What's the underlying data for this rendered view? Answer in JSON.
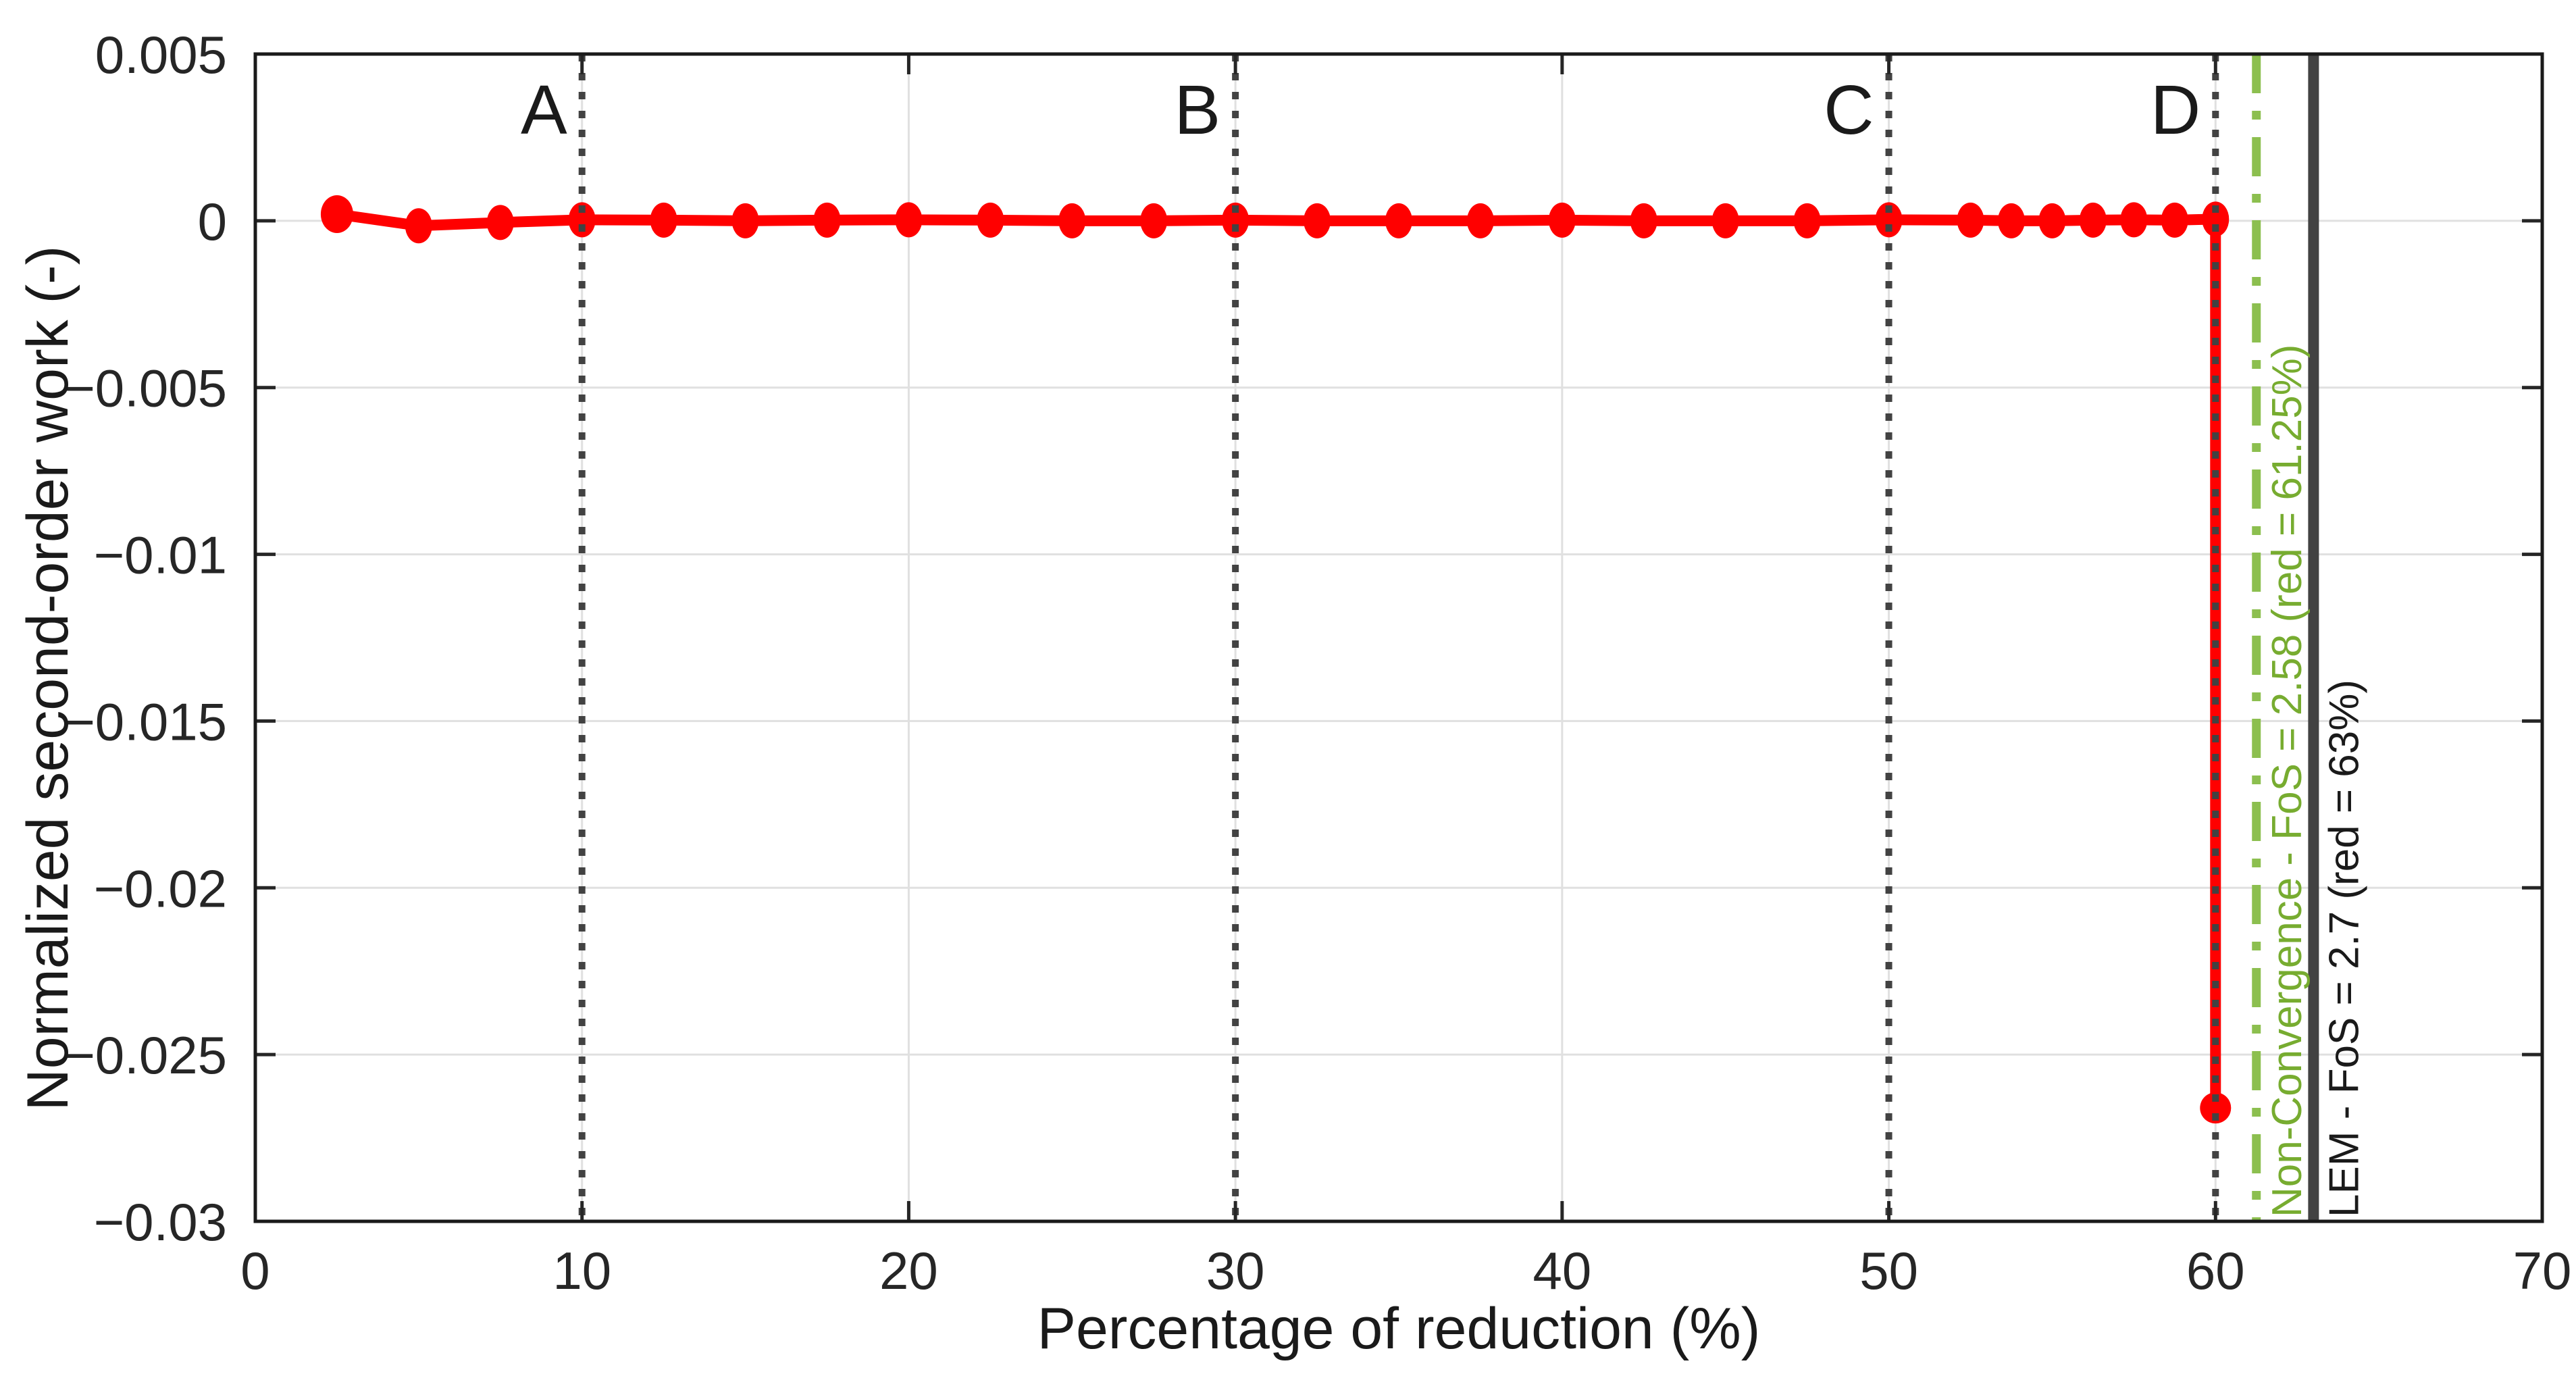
{
  "figure": {
    "background": "#ffffff",
    "axis_box_color": "#1a1a1a",
    "grid_color": "#e0e0e0",
    "tick_color": "#262626",
    "tick_label_color": "#262626",
    "axis_title_color": "#1a1a1a",
    "series_color": "#ff0000",
    "marker_letter_color": "#1a1a1a"
  },
  "chart_data": {
    "type": "line",
    "title": "",
    "xlabel": "Percentage of reduction (%)",
    "ylabel": "Normalized second-order work (-)",
    "xlim": [
      0,
      70
    ],
    "ylim": [
      -0.03,
      0.005
    ],
    "grid": true,
    "legend_position": "none",
    "xticks": {
      "values": [
        0,
        10,
        20,
        30,
        40,
        50,
        60,
        70
      ],
      "labels": [
        "0",
        "10",
        "20",
        "30",
        "40",
        "50",
        "60",
        "70"
      ]
    },
    "yticks": {
      "values": [
        0.005,
        0,
        -0.005,
        -0.01,
        -0.015,
        -0.02,
        -0.025,
        -0.03
      ],
      "labels": [
        "0.005",
        "0",
        "−0.005",
        "−0.01",
        "−0.015",
        "−0.02",
        "−0.025",
        "−0.03"
      ]
    },
    "series": [
      {
        "name": "normalized second-order work",
        "color": "#ff0000",
        "marker": "circle",
        "line_style": "solid",
        "x": [
          2.5,
          5,
          7.5,
          10,
          12.5,
          15,
          17.5,
          20,
          22.5,
          25,
          27.5,
          30,
          32.5,
          35,
          37.5,
          40,
          42.5,
          45,
          47.5,
          50,
          52.5,
          53.75,
          55,
          56.25,
          57.5,
          58.75,
          60,
          60
        ],
        "y": [
          0.0002,
          -0.00015,
          -5e-05,
          3e-05,
          2e-05,
          0,
          2e-05,
          3e-05,
          2e-05,
          0,
          0,
          2e-05,
          0,
          0,
          0,
          2e-05,
          0,
          0,
          0,
          3e-05,
          2e-05,
          0,
          0,
          2e-05,
          3e-05,
          2e-05,
          5e-05,
          -0.0266
        ]
      }
    ],
    "vlines": [
      {
        "x": 10,
        "label": "A",
        "style": "dotted",
        "color": "#424242",
        "label_orientation": "horizontal",
        "label_color": "#1a1a1a"
      },
      {
        "x": 30,
        "label": "B",
        "style": "dotted",
        "color": "#424242",
        "label_orientation": "horizontal",
        "label_color": "#1a1a1a"
      },
      {
        "x": 50,
        "label": "C",
        "style": "dotted",
        "color": "#424242",
        "label_orientation": "horizontal",
        "label_color": "#1a1a1a"
      },
      {
        "x": 60,
        "label": "D",
        "style": "dotted",
        "color": "#424242",
        "label_orientation": "horizontal",
        "label_color": "#1a1a1a"
      },
      {
        "x": 61.25,
        "label": "Non-Convergence - FoS = 2.58 (red = 61.25%)",
        "style": "dashdot",
        "color": "#8cbf4f",
        "label_orientation": "vertical",
        "label_color": "#77ac30"
      },
      {
        "x": 63,
        "label": "LEM - FoS = 2.7 (red = 63%)",
        "style": "solid",
        "color": "#424242",
        "label_orientation": "vertical",
        "label_color": "#1a1a1a"
      }
    ]
  }
}
